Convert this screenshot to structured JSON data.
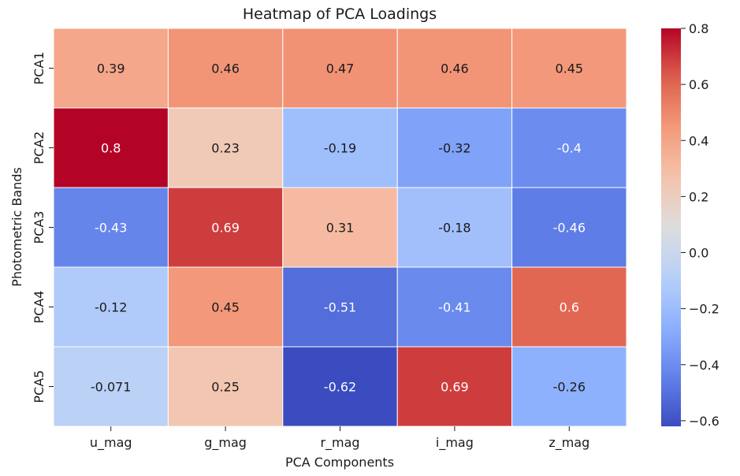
{
  "chart_data": {
    "type": "heatmap",
    "title": "Heatmap of PCA Loadings",
    "xlabel": "PCA Components",
    "ylabel": "Photometric Bands",
    "columns": [
      "u_mag",
      "g_mag",
      "r_mag",
      "i_mag",
      "z_mag"
    ],
    "rows": [
      "PCA1",
      "PCA2",
      "PCA3",
      "PCA4",
      "PCA5"
    ],
    "values": [
      [
        0.39,
        0.46,
        0.47,
        0.46,
        0.45
      ],
      [
        0.8,
        0.23,
        -0.19,
        -0.32,
        -0.4
      ],
      [
        -0.43,
        0.69,
        0.31,
        -0.18,
        -0.46
      ],
      [
        -0.12,
        0.45,
        -0.51,
        -0.41,
        0.6
      ],
      [
        -0.071,
        0.25,
        -0.62,
        0.69,
        -0.26
      ]
    ],
    "labels": [
      [
        "0.39",
        "0.46",
        "0.47",
        "0.46",
        "0.45"
      ],
      [
        "0.8",
        "0.23",
        "-0.19",
        "-0.32",
        "-0.4"
      ],
      [
        "-0.43",
        "0.69",
        "0.31",
        "-0.18",
        "-0.46"
      ],
      [
        "-0.12",
        "0.45",
        "-0.51",
        "-0.41",
        "0.6"
      ],
      [
        "-0.071",
        "0.25",
        "-0.62",
        "0.69",
        "-0.26"
      ]
    ],
    "colormap": "coolwarm",
    "vmin": -0.62,
    "vmax": 0.8,
    "colorbar_ticks": [
      0.8,
      0.6,
      0.4,
      0.2,
      0.0,
      -0.2,
      -0.4,
      -0.6
    ],
    "colorbar_tick_labels": [
      "0.8",
      "0.6",
      "0.4",
      "0.2",
      "0.0",
      "−0.2",
      "−0.4",
      "−0.6"
    ],
    "grid": false,
    "legend": "colorbar-right"
  }
}
